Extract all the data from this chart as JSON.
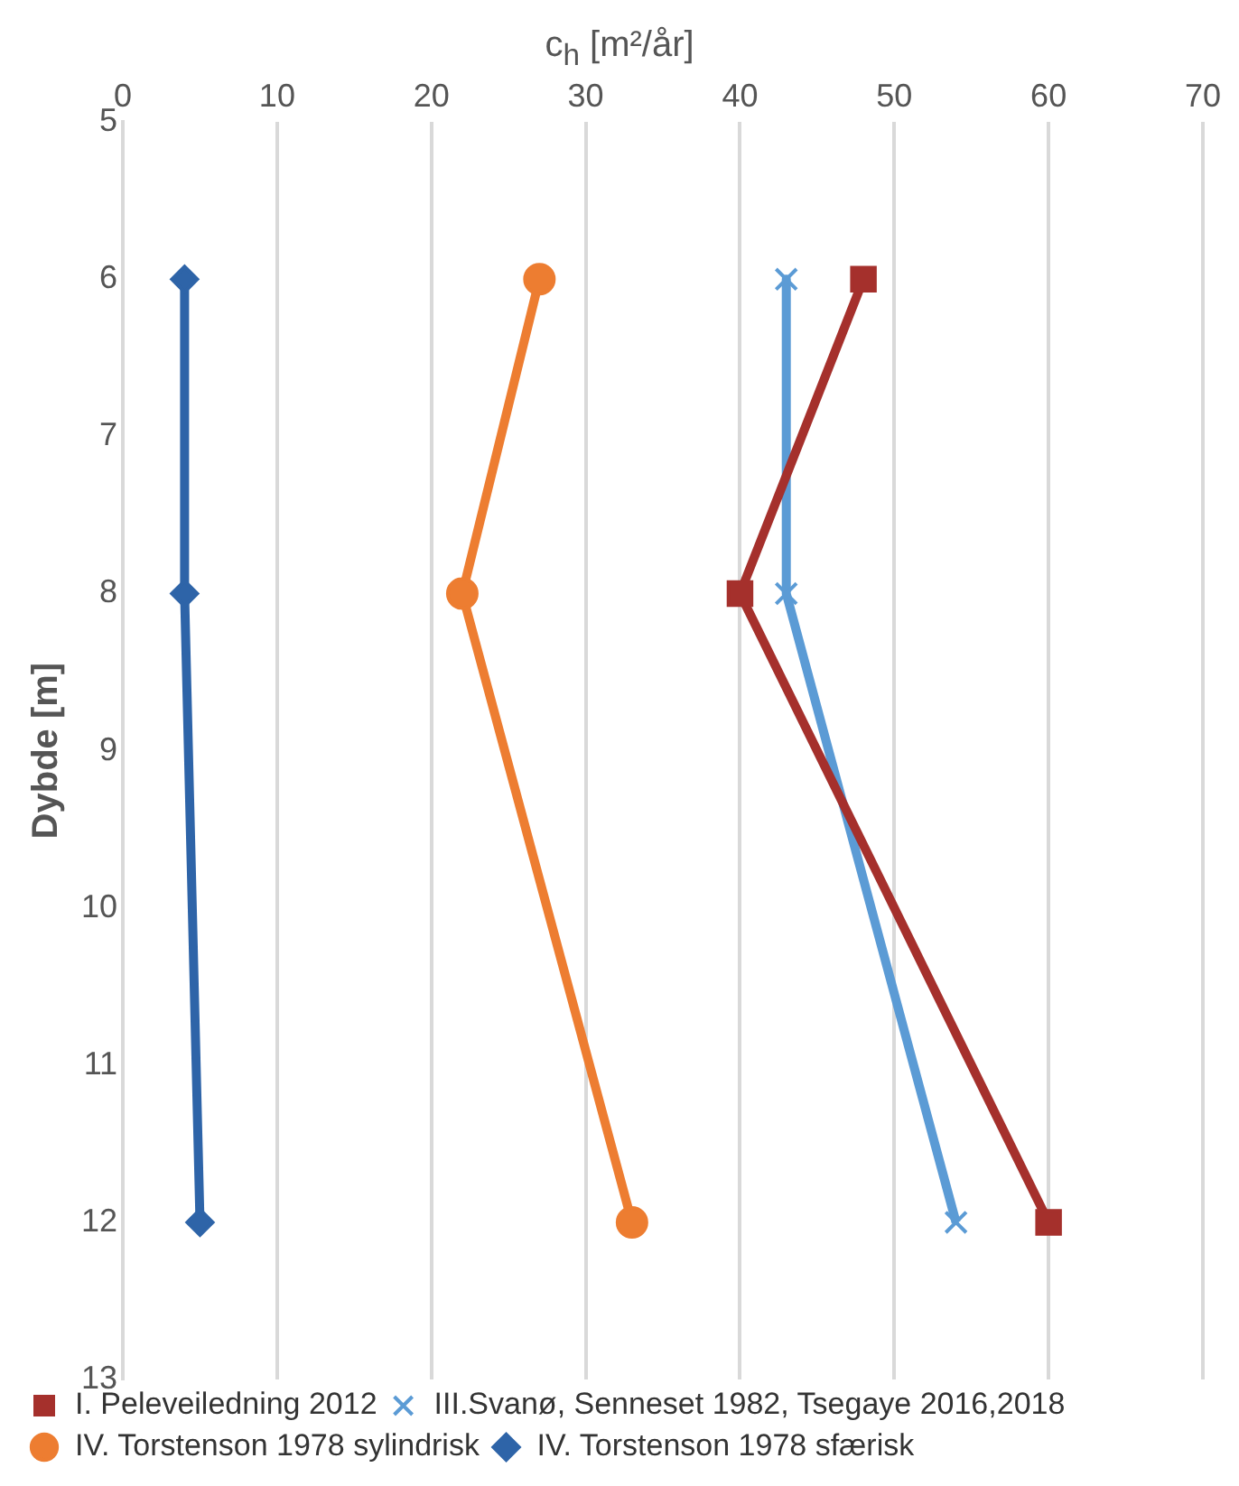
{
  "chart_data": {
    "type": "line",
    "xlabel": "c$_{h}$ [m²/år]",
    "ylabel": "Dybde [m]",
    "xlim": [
      0,
      70
    ],
    "xticks": [
      0,
      10,
      20,
      30,
      40,
      50,
      60,
      70
    ],
    "ylim": [
      13,
      5
    ],
    "yticks": [
      5,
      6,
      7,
      8,
      9,
      10,
      11,
      12,
      13
    ],
    "grid": "x",
    "legend": "bottom",
    "line_style": "solid",
    "series": [
      {
        "name": "I. Peleveiledning 2012",
        "color": "#a5302c",
        "marker": "square",
        "x": [
          48,
          40,
          60
        ],
        "values": [
          6,
          8,
          12
        ]
      },
      {
        "name": "III.Svanø, Senneset 1982, Tsegaye 2016,2018",
        "color": "#5b9bd5",
        "marker": "cross",
        "x": [
          43,
          43,
          54
        ],
        "values": [
          6,
          8,
          12
        ]
      },
      {
        "name": "IV. Torstenson 1978 sylindrisk",
        "color": "#ed7d31",
        "marker": "circle",
        "x": [
          27,
          22,
          33
        ],
        "values": [
          6,
          8,
          12
        ]
      },
      {
        "name": "IV. Torstenson 1978 sfærisk",
        "color": "#2e64a8",
        "marker": "diamond",
        "x": [
          4,
          4,
          5
        ],
        "values": [
          6,
          8,
          12
        ]
      }
    ]
  }
}
